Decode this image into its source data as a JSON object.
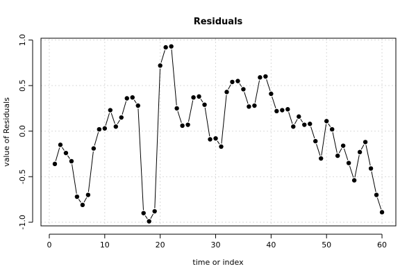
{
  "chart_data": {
    "type": "line",
    "title": "Residuals",
    "xlabel": "time or index",
    "ylabel": "value of Residuals",
    "xlim": [
      -1.5,
      62.5
    ],
    "ylim": [
      -1.04,
      1.02
    ],
    "xticks": [
      0,
      10,
      20,
      30,
      40,
      50,
      60
    ],
    "yticks": [
      -1.0,
      -0.5,
      0.0,
      0.5,
      1.0
    ],
    "ytick_labels": [
      "-1.0",
      "-0.5",
      "0.0",
      "0.5",
      "1.0"
    ],
    "grid": true,
    "x": [
      1,
      2,
      3,
      4,
      5,
      6,
      7,
      8,
      9,
      10,
      11,
      12,
      13,
      14,
      15,
      16,
      17,
      18,
      19,
      20,
      21,
      22,
      23,
      24,
      25,
      26,
      27,
      28,
      29,
      30,
      31,
      32,
      33,
      34,
      35,
      36,
      37,
      38,
      39,
      40,
      41,
      42,
      43,
      44,
      45,
      46,
      47,
      48,
      49,
      50,
      51,
      52,
      53,
      54,
      55,
      56,
      57,
      58,
      59,
      60
    ],
    "series": [
      {
        "values": [
          -0.36,
          -0.15,
          -0.24,
          -0.33,
          -0.72,
          -0.81,
          -0.7,
          -0.19,
          0.02,
          0.03,
          0.23,
          0.05,
          0.15,
          0.36,
          0.37,
          0.28,
          -0.9,
          -0.99,
          -0.88,
          0.72,
          0.92,
          0.93,
          0.25,
          0.06,
          0.07,
          0.37,
          0.38,
          0.29,
          -0.09,
          -0.08,
          -0.17,
          0.43,
          0.54,
          0.55,
          0.46,
          0.27,
          0.28,
          0.59,
          0.6,
          0.41,
          0.22,
          0.23,
          0.24,
          0.05,
          0.16,
          0.07,
          0.08,
          -0.11,
          -0.3,
          0.11,
          0.02,
          -0.27,
          -0.16,
          -0.35,
          -0.54,
          -0.23,
          -0.12,
          -0.41,
          -0.7,
          -0.89
        ]
      }
    ]
  }
}
